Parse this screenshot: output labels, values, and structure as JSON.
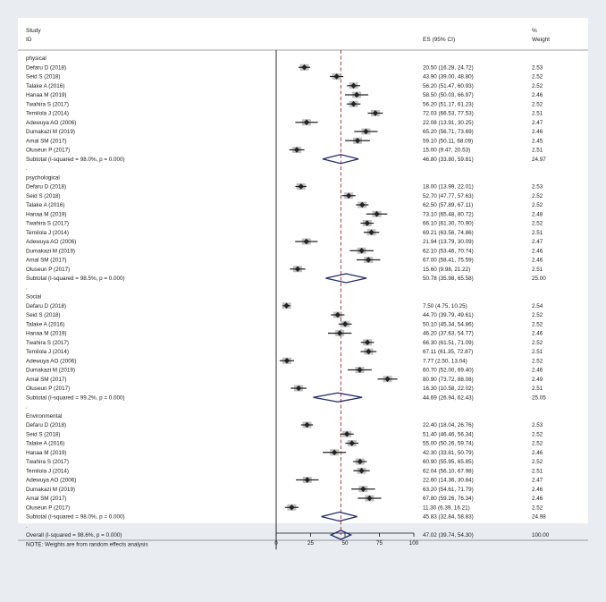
{
  "header": {
    "left_line1": "Study",
    "left_line2": "ID",
    "es_label": "ES (95% CI)",
    "weight_line1": "%",
    "weight_line2": "Weight"
  },
  "colors": {
    "background": "#e9edf2",
    "panel": "#ffffff",
    "ref_line": "#b24a4a",
    "diamond": "#1f2a6b",
    "marker": "#222222",
    "weight_box": "#bfbfbf"
  },
  "chart_data": {
    "type": "forest",
    "xlim": [
      0,
      100
    ],
    "xticks": [
      0,
      25,
      50,
      75,
      100
    ],
    "xtick_labels": [
      "0",
      "25",
      "50",
      "75",
      "100"
    ],
    "reference_line": 47.02,
    "groups": [
      {
        "name": "physical",
        "studies": [
          {
            "id": "Defaru D (2018)",
            "es": 20.5,
            "lo": 16.28,
            "hi": 24.72,
            "es_text": "20.50 (16.28, 24.72)",
            "weight": "2.53"
          },
          {
            "id": "Seid S (2018)",
            "es": 43.9,
            "lo": 39.0,
            "hi": 48.8,
            "es_text": "43.90 (39.00, 48.80)",
            "weight": "2.52"
          },
          {
            "id": "Talake A (2016)",
            "es": 56.2,
            "lo": 51.47,
            "hi": 60.93,
            "es_text": "56.20 (51.47, 60.93)",
            "weight": "2.52"
          },
          {
            "id": "Hanaa M (2019)",
            "es": 58.5,
            "lo": 50.03,
            "hi": 66.97,
            "es_text": "58.50 (50.03, 66.97)",
            "weight": "2.46"
          },
          {
            "id": "Twahira S (2017)",
            "es": 56.2,
            "lo": 51.17,
            "hi": 61.23,
            "es_text": "56.20 (51.17, 61.23)",
            "weight": "2.52"
          },
          {
            "id": "Temilola J (2014)",
            "es": 72.03,
            "lo": 66.53,
            "hi": 77.53,
            "es_text": "72.03 (66.53, 77.53)",
            "weight": "2.51"
          },
          {
            "id": "Adewuya AO (2006)",
            "es": 22.08,
            "lo": 13.91,
            "hi": 30.25,
            "es_text": "22.08 (13.91, 30.25)",
            "weight": "2.47"
          },
          {
            "id": "Dumakazi M (2019)",
            "es": 65.2,
            "lo": 56.71,
            "hi": 73.69,
            "es_text": "65.20 (56.71, 73.69)",
            "weight": "2.46"
          },
          {
            "id": "Amal SM (2017)",
            "es": 59.1,
            "lo": 50.11,
            "hi": 68.09,
            "es_text": "59.10 (50.11, 68.09)",
            "weight": "2.45"
          },
          {
            "id": "Oluseun P (2017)",
            "es": 15.0,
            "lo": 9.47,
            "hi": 20.53,
            "es_text": "15.00 (9.47, 20.53)",
            "weight": "2.51"
          }
        ],
        "subtotal": {
          "label": "Subtotal  (I-squared = 98.0%, p = 0.000)",
          "es": 46.8,
          "lo": 33.8,
          "hi": 59.81,
          "es_text": "46.80 (33.80, 59.81)",
          "weight": "24.97"
        }
      },
      {
        "name": "psychological",
        "studies": [
          {
            "id": "Defaru D (2018)",
            "es": 18.0,
            "lo": 13.99,
            "hi": 22.01,
            "es_text": "18.00 (13.99, 22.01)",
            "weight": "2.53"
          },
          {
            "id": "Seid S (2018)",
            "es": 52.7,
            "lo": 47.77,
            "hi": 57.63,
            "es_text": "52.70 (47.77, 57.63)",
            "weight": "2.52"
          },
          {
            "id": "Talake A (2016)",
            "es": 62.5,
            "lo": 57.89,
            "hi": 67.11,
            "es_text": "62.50 (57.89, 67.11)",
            "weight": "2.52"
          },
          {
            "id": "Hanaa M (2019)",
            "es": 73.1,
            "lo": 65.48,
            "hi": 80.72,
            "es_text": "73.10 (65.48, 80.72)",
            "weight": "2.48"
          },
          {
            "id": "Twahira S (2017)",
            "es": 66.1,
            "lo": 61.3,
            "hi": 70.9,
            "es_text": "66.10 (61.30, 70.90)",
            "weight": "2.52"
          },
          {
            "id": "Temilola J (2014)",
            "es": 69.21,
            "lo": 63.56,
            "hi": 74.86,
            "es_text": "69.21 (63.56, 74.86)",
            "weight": "2.51"
          },
          {
            "id": "Adewuya AO (2006)",
            "es": 21.94,
            "lo": 13.79,
            "hi": 30.09,
            "es_text": "21.94 (13.79, 30.09)",
            "weight": "2.47"
          },
          {
            "id": "Dumakazi M (2019)",
            "es": 62.1,
            "lo": 53.46,
            "hi": 70.74,
            "es_text": "62.10 (53.46, 70.74)",
            "weight": "2.46"
          },
          {
            "id": "Amal SM (2017)",
            "es": 67.0,
            "lo": 58.41,
            "hi": 75.59,
            "es_text": "67.00 (58.41, 75.59)",
            "weight": "2.46"
          },
          {
            "id": "Oluseun P (2017)",
            "es": 15.6,
            "lo": 9.98,
            "hi": 21.22,
            "es_text": "15.60 (9.98, 21.22)",
            "weight": "2.51"
          }
        ],
        "subtotal": {
          "label": "Subtotal  (I-squared = 98.5%, p = 0.000)",
          "es": 50.78,
          "lo": 35.98,
          "hi": 65.58,
          "es_text": "50.78 (35.98, 65.58)",
          "weight": "25.00"
        }
      },
      {
        "name": "Social",
        "studies": [
          {
            "id": "Defaru D (2018)",
            "es": 7.5,
            "lo": 4.75,
            "hi": 10.25,
            "es_text": "7.50 (4.75, 10.25)",
            "weight": "2.54"
          },
          {
            "id": "Seid S (2018)",
            "es": 44.7,
            "lo": 39.79,
            "hi": 49.61,
            "es_text": "44.70 (39.79, 49.61)",
            "weight": "2.52"
          },
          {
            "id": "Talake A (2016)",
            "es": 50.1,
            "lo": 45.34,
            "hi": 54.86,
            "es_text": "50.10 (45.34, 54.86)",
            "weight": "2.52"
          },
          {
            "id": "Hanaa M (2019)",
            "es": 46.2,
            "lo": 37.63,
            "hi": 54.77,
            "es_text": "46.20 (37.63, 54.77)",
            "weight": "2.46"
          },
          {
            "id": "Twahira S (2017)",
            "es": 66.3,
            "lo": 61.51,
            "hi": 71.09,
            "es_text": "66.30 (61.51, 71.09)",
            "weight": "2.52"
          },
          {
            "id": "Temilola J (2014)",
            "es": 67.11,
            "lo": 61.35,
            "hi": 72.87,
            "es_text": "67.11 (61.35, 72.87)",
            "weight": "2.51"
          },
          {
            "id": "Adewuya AO (2006)",
            "es": 7.77,
            "lo": 2.5,
            "hi": 13.04,
            "es_text": "7.77 (2.50, 13.04)",
            "weight": "2.52"
          },
          {
            "id": "Dumakazi M (2019)",
            "es": 60.7,
            "lo": 52.0,
            "hi": 69.4,
            "es_text": "60.70 (52.00, 69.40)",
            "weight": "2.46"
          },
          {
            "id": "Amal SM (2017)",
            "es": 80.9,
            "lo": 73.72,
            "hi": 88.08,
            "es_text": "80.90 (73.72, 88.08)",
            "weight": "2.49"
          },
          {
            "id": "Oluseun P (2017)",
            "es": 16.3,
            "lo": 10.58,
            "hi": 22.02,
            "es_text": "16.30 (10.58, 22.02)",
            "weight": "2.51"
          }
        ],
        "subtotal": {
          "label": "Subtotal  (I-squared = 99.2%, p = 0.000)",
          "es": 44.69,
          "lo": 26.94,
          "hi": 62.43,
          "es_text": "44.69 (26.94, 62.43)",
          "weight": "25.05"
        }
      },
      {
        "name": "Environmental",
        "studies": [
          {
            "id": "Defaru D (2018)",
            "es": 22.4,
            "lo": 18.04,
            "hi": 26.76,
            "es_text": "22.40 (18.04, 26.76)",
            "weight": "2.53"
          },
          {
            "id": "Seid S (2018)",
            "es": 51.4,
            "lo": 46.46,
            "hi": 56.34,
            "es_text": "51.40 (46.46, 56.34)",
            "weight": "2.52"
          },
          {
            "id": "Talake A (2016)",
            "es": 55.0,
            "lo": 50.26,
            "hi": 59.74,
            "es_text": "55.00 (50.26, 59.74)",
            "weight": "2.52"
          },
          {
            "id": "Hanaa M (2019)",
            "es": 42.3,
            "lo": 33.81,
            "hi": 50.79,
            "es_text": "42.30 (33.81, 50.79)",
            "weight": "2.46"
          },
          {
            "id": "Twahira S (2017)",
            "es": 60.9,
            "lo": 55.95,
            "hi": 65.85,
            "es_text": "60.90 (55.95, 65.85)",
            "weight": "2.52"
          },
          {
            "id": "Temilola J (2014)",
            "es": 62.04,
            "lo": 56.1,
            "hi": 67.98,
            "es_text": "62.04 (56.10, 67.98)",
            "weight": "2.51"
          },
          {
            "id": "Adewuya AO (2006)",
            "es": 22.6,
            "lo": 14.36,
            "hi": 30.84,
            "es_text": "22.60 (14.36, 30.84)",
            "weight": "2.47"
          },
          {
            "id": "Dumakazi M (2019)",
            "es": 63.2,
            "lo": 54.61,
            "hi": 71.79,
            "es_text": "63.20 (54.61, 71.79)",
            "weight": "2.46"
          },
          {
            "id": "Amal SM (2017)",
            "es": 67.8,
            "lo": 59.26,
            "hi": 76.34,
            "es_text": "67.80 (59.26, 76.34)",
            "weight": "2.46"
          },
          {
            "id": "Oluseun P (2017)",
            "es": 11.3,
            "lo": 6.39,
            "hi": 16.21,
            "es_text": "11.30 (6.39, 16.21)",
            "weight": "2.52"
          }
        ],
        "subtotal": {
          "label": "Subtotal  (I-squared = 98.0%, p = 0.000)",
          "es": 45.83,
          "lo": 32.84,
          "hi": 58.83,
          "es_text": "45.83 (32.84, 58.83)",
          "weight": "24.98"
        }
      }
    ],
    "overall": {
      "label": "Overall  (I-squared = 98.6%, p = 0.000)",
      "es": 47.02,
      "lo": 39.74,
      "hi": 54.3,
      "es_text": "47.02 (39.74, 54.30)",
      "weight": "100.00"
    },
    "note": "NOTE: Weights are from random effects analysis"
  }
}
